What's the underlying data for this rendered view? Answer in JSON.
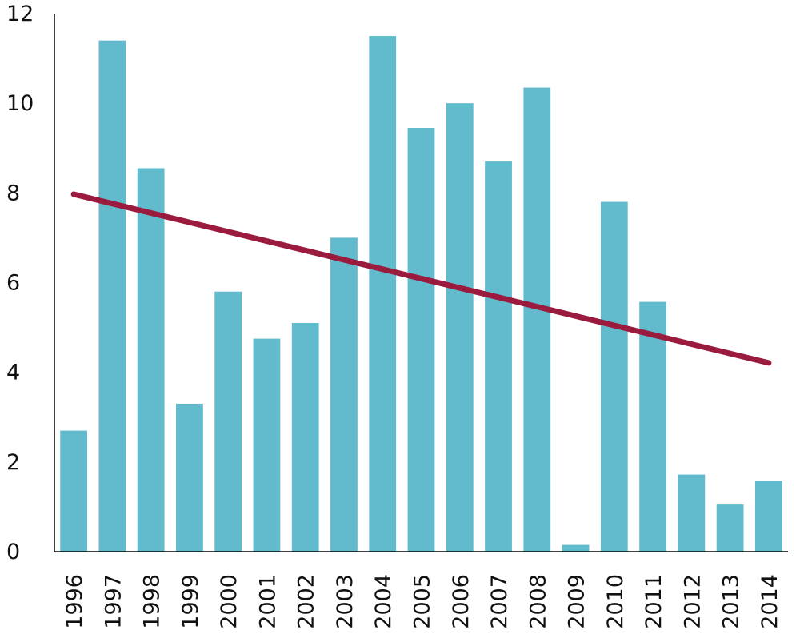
{
  "chart_data": {
    "type": "bar",
    "title": "",
    "xlabel": "",
    "ylabel": "",
    "categories": [
      "1996",
      "1997",
      "1998",
      "1999",
      "2000",
      "2001",
      "2002",
      "2003",
      "2004",
      "2005",
      "2006",
      "2007",
      "2008",
      "2009",
      "2010",
      "2011",
      "2012",
      "2013",
      "2014"
    ],
    "series": [
      {
        "type": "bar",
        "values": [
          2.7,
          11.4,
          8.55,
          3.3,
          5.8,
          4.75,
          5.1,
          7.0,
          11.5,
          9.45,
          10.0,
          8.7,
          10.35,
          0.15,
          7.8,
          5.57,
          1.72,
          1.05,
          1.58
        ]
      },
      {
        "type": "trendline",
        "start": {
          "x": "1996",
          "y": 7.97
        },
        "end": {
          "x": "2014",
          "y": 4.21
        }
      }
    ],
    "ylim": [
      0,
      12
    ],
    "yticks": [
      0,
      2,
      4,
      6,
      8,
      10,
      12
    ],
    "grid": false,
    "legend": "none",
    "colors": {
      "bar": "#62bbcd",
      "trendline": "#9b1b3e"
    }
  }
}
